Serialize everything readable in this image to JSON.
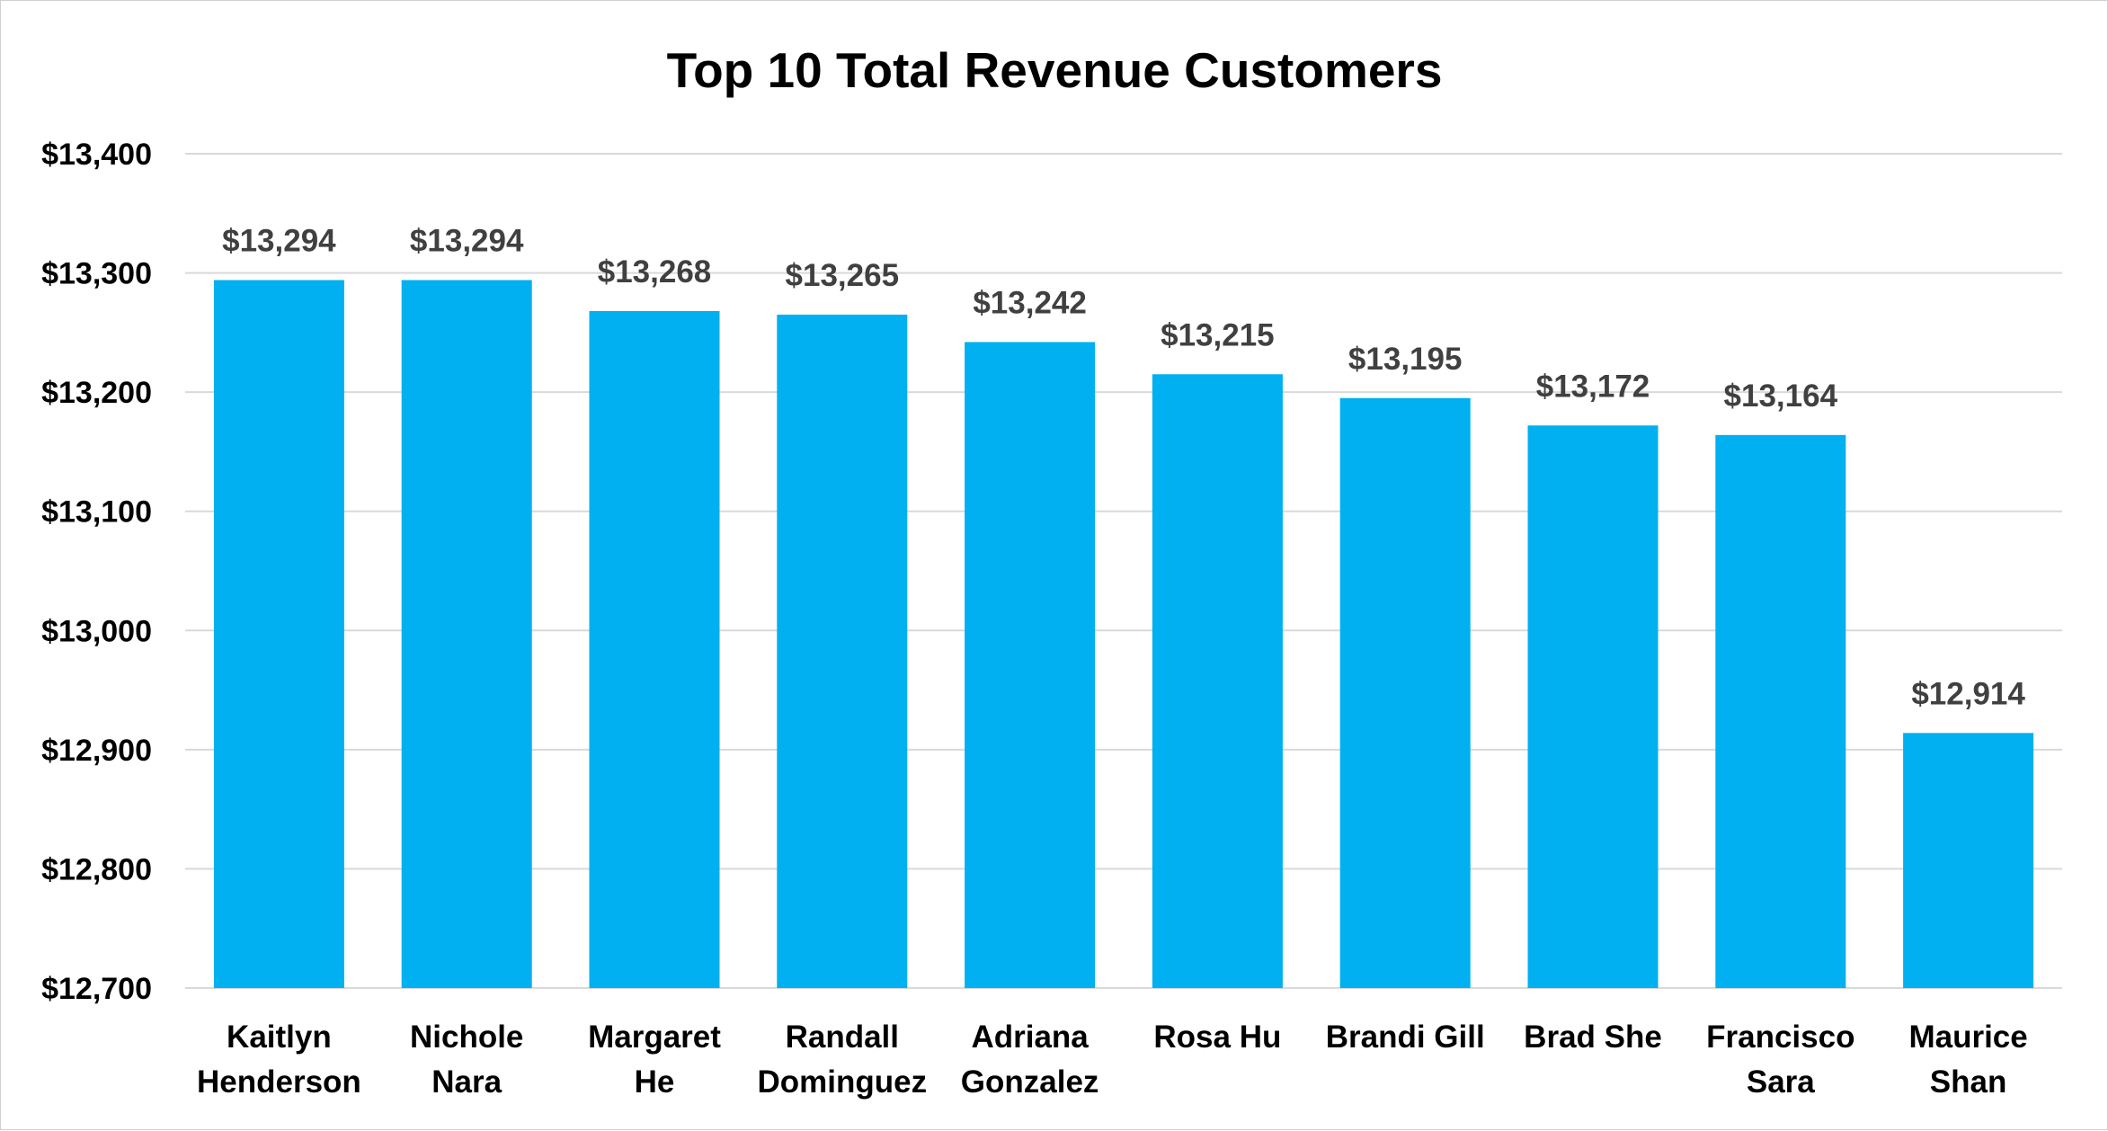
{
  "chart_data": {
    "type": "bar",
    "title": "Top 10 Total Revenue Customers",
    "xlabel": "",
    "ylabel": "",
    "categories": [
      [
        "Kaitlyn",
        "Henderson"
      ],
      [
        "Nichole",
        "Nara"
      ],
      [
        "Margaret",
        "He"
      ],
      [
        "Randall",
        "Dominguez"
      ],
      [
        "Adriana",
        "Gonzalez"
      ],
      [
        "Rosa Hu"
      ],
      [
        "Brandi Gill"
      ],
      [
        "Brad She"
      ],
      [
        "Francisco",
        "Sara"
      ],
      [
        "Maurice",
        "Shan"
      ]
    ],
    "values": [
      13294,
      13294,
      13268,
      13265,
      13242,
      13215,
      13195,
      13172,
      13164,
      12914
    ],
    "data_labels": [
      "$13,294",
      "$13,294",
      "$13,268",
      "$13,265",
      "$13,242",
      "$13,215",
      "$13,195",
      "$13,172",
      "$13,164",
      "$12,914"
    ],
    "ylim": [
      12700,
      13400
    ],
    "yticks": [
      12700,
      12800,
      12900,
      13000,
      13100,
      13200,
      13300,
      13400
    ],
    "ytick_labels": [
      "$12,700",
      "$12,800",
      "$12,900",
      "$13,000",
      "$13,100",
      "$13,200",
      "$13,300",
      "$13,400"
    ],
    "grid": true,
    "legend": "none",
    "bar_color": "#00b0f0"
  }
}
